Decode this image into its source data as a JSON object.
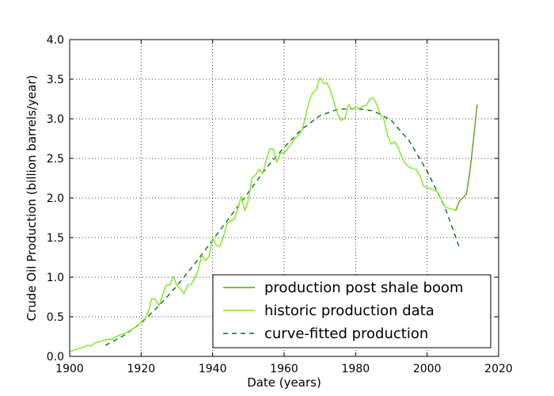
{
  "chart_data": {
    "type": "line",
    "title": "",
    "xlabel": "Date (years)",
    "ylabel": "Crude Oil Production (billion barrels/year)",
    "xlim": [
      1900,
      2020
    ],
    "ylim": [
      0.0,
      4.0
    ],
    "xticks": [
      1900,
      1920,
      1940,
      1960,
      1980,
      2000,
      2020
    ],
    "yticks": [
      0.0,
      0.5,
      1.0,
      1.5,
      2.0,
      2.5,
      3.0,
      3.5,
      4.0
    ],
    "xtick_labels": [
      "1900",
      "1920",
      "1940",
      "1960",
      "1980",
      "2000",
      "2020"
    ],
    "ytick_labels": [
      "0.0",
      "0.5",
      "1.0",
      "1.5",
      "2.0",
      "2.5",
      "3.0",
      "3.5",
      "4.0"
    ],
    "grid": true,
    "legend_position": "lower-right",
    "series": [
      {
        "name": "production post shale boom",
        "color": "#5c9e1e",
        "style": "solid",
        "x": [
          2008,
          2009,
          2010,
          2011,
          2012,
          2013,
          2014
        ],
        "y": [
          1.84,
          1.96,
          2.0,
          2.05,
          2.35,
          2.75,
          3.18
        ]
      },
      {
        "name": "historic production data",
        "color": "#7ce61e",
        "style": "solid",
        "x": [
          1900,
          1902,
          1904,
          1905,
          1906,
          1907,
          1908,
          1910,
          1912,
          1914,
          1916,
          1918,
          1919,
          1920,
          1921,
          1922,
          1923,
          1924,
          1925,
          1926,
          1927,
          1928,
          1929,
          1930,
          1931,
          1932,
          1933,
          1934,
          1935,
          1936,
          1937,
          1938,
          1939,
          1940,
          1941,
          1942,
          1943,
          1944,
          1945,
          1946,
          1947,
          1948,
          1949,
          1950,
          1951,
          1952,
          1953,
          1954,
          1955,
          1956,
          1957,
          1958,
          1959,
          1960,
          1961,
          1962,
          1963,
          1964,
          1965,
          1966,
          1967,
          1968,
          1969,
          1970,
          1971,
          1972,
          1973,
          1974,
          1975,
          1976,
          1977,
          1978,
          1979,
          1980,
          1981,
          1982,
          1983,
          1984,
          1985,
          1986,
          1987,
          1988,
          1989,
          1990,
          1991,
          1992,
          1993,
          1994,
          1995,
          1996,
          1997,
          1998,
          1999,
          2000,
          2001,
          2002,
          2003,
          2004,
          2005,
          2006,
          2007,
          2008
        ],
        "y": [
          0.06,
          0.09,
          0.12,
          0.14,
          0.13,
          0.17,
          0.18,
          0.21,
          0.22,
          0.27,
          0.3,
          0.36,
          0.38,
          0.44,
          0.47,
          0.56,
          0.73,
          0.72,
          0.64,
          0.77,
          0.9,
          0.9,
          1.01,
          0.9,
          0.85,
          0.79,
          0.9,
          0.91,
          0.99,
          1.1,
          1.28,
          1.21,
          1.26,
          1.5,
          1.4,
          1.39,
          1.51,
          1.68,
          1.71,
          1.73,
          1.86,
          2.02,
          1.84,
          1.97,
          2.25,
          2.29,
          2.36,
          2.31,
          2.48,
          2.62,
          2.62,
          2.45,
          2.57,
          2.57,
          2.62,
          2.68,
          2.75,
          2.79,
          2.85,
          3.03,
          3.22,
          3.33,
          3.37,
          3.52,
          3.45,
          3.45,
          3.36,
          3.2,
          3.06,
          2.98,
          3.01,
          3.18,
          3.12,
          3.14,
          3.13,
          3.16,
          3.17,
          3.25,
          3.27,
          3.17,
          3.05,
          2.98,
          2.78,
          2.68,
          2.71,
          2.63,
          2.5,
          2.43,
          2.39,
          2.37,
          2.36,
          2.28,
          2.15,
          2.13,
          2.12,
          2.1,
          2.07,
          1.98,
          1.89,
          1.87,
          1.86,
          1.84
        ]
      },
      {
        "name": "curve-fitted production",
        "color": "#0b6b1a",
        "style": "dashed",
        "x": [
          1910,
          1915,
          1920,
          1925,
          1930,
          1935,
          1940,
          1945,
          1950,
          1955,
          1960,
          1965,
          1970,
          1975,
          1980,
          1985,
          1990,
          1995,
          2000,
          2005,
          2009
        ],
        "y": [
          0.14,
          0.26,
          0.42,
          0.64,
          0.89,
          1.17,
          1.47,
          1.77,
          2.07,
          2.38,
          2.64,
          2.87,
          3.04,
          3.12,
          3.13,
          3.1,
          2.98,
          2.72,
          2.34,
          1.88,
          1.38
        ]
      }
    ]
  }
}
